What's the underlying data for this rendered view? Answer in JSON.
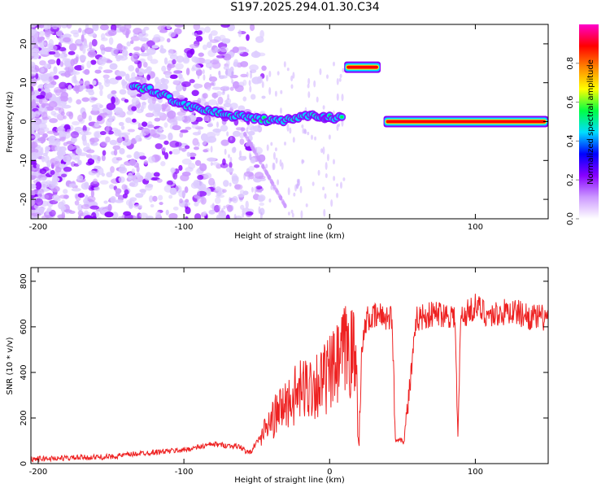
{
  "title": "S197.2025.294.01.30.C34",
  "chart_data": [
    {
      "type": "heatmap",
      "title": "S197.2025.294.01.30.C34",
      "xlabel": "Height of straight line (km)",
      "ylabel": "Frequency (Hz)",
      "xlim": [
        -205,
        150
      ],
      "ylim": [
        -25,
        25
      ],
      "xticks": [
        -200,
        -100,
        0,
        100
      ],
      "xtick_labels": [
        "-200",
        "-100",
        "0",
        "100"
      ],
      "yticks": [
        -20,
        -10,
        0,
        10,
        20
      ],
      "ytick_labels": [
        "-20",
        "-10",
        "0",
        "10",
        "20"
      ],
      "ridge": {
        "x": [
          -135,
          -125,
          -115,
          -105,
          -95,
          -85,
          -75,
          -65,
          -55,
          -45,
          -35,
          -25,
          -15,
          -5,
          0,
          10
        ],
        "freq": [
          9,
          8.5,
          7,
          5,
          4,
          3,
          2,
          1.5,
          1,
          0.5,
          0,
          1,
          1.5,
          1,
          1,
          1
        ]
      },
      "segments": [
        {
          "x_start": 10,
          "x_end": 35,
          "freq": 14
        },
        {
          "x_start": 37,
          "x_end": 150,
          "freq": 0
        }
      ],
      "colorbar": {
        "label": "Normalized spectral amplitude",
        "ticks": [
          0.0,
          0.2,
          0.4,
          0.6,
          0.8
        ],
        "tick_labels": [
          "0.0",
          "0.2",
          "0.4",
          "0.6",
          "0.8"
        ],
        "range": [
          0,
          1
        ],
        "colors": [
          "#ffffff",
          "#cc99ff",
          "#8800ff",
          "#0000ff",
          "#00ddff",
          "#00ff44",
          "#ffff00",
          "#ff8800",
          "#ff0000",
          "#ff00cc"
        ]
      }
    },
    {
      "type": "line",
      "xlabel": "Height of straight line (km)",
      "ylabel": "SNR (10 * v/v)",
      "xlim": [
        -205,
        150
      ],
      "ylim": [
        0,
        860
      ],
      "xticks": [
        -200,
        -100,
        0,
        100
      ],
      "xtick_labels": [
        "-200",
        "-100",
        "0",
        "100"
      ],
      "yticks": [
        0,
        200,
        400,
        600,
        800
      ],
      "ytick_labels": [
        "0",
        "200",
        "400",
        "600",
        "800"
      ],
      "color": "#ee2222",
      "x": [
        -205,
        -150,
        -130,
        -100,
        -80,
        -62,
        -55,
        -45,
        -35,
        -25,
        -15,
        -5,
        5,
        12,
        18,
        20,
        22,
        25,
        35,
        43,
        45,
        48,
        51,
        60,
        75,
        86,
        88,
        90,
        100,
        110,
        125,
        140,
        150
      ],
      "y": [
        20,
        30,
        45,
        60,
        85,
        75,
        45,
        140,
        230,
        290,
        340,
        360,
        420,
        510,
        460,
        80,
        480,
        630,
        650,
        640,
        100,
        110,
        95,
        640,
        660,
        650,
        100,
        640,
        690,
        650,
        670,
        640,
        640
      ]
    }
  ]
}
